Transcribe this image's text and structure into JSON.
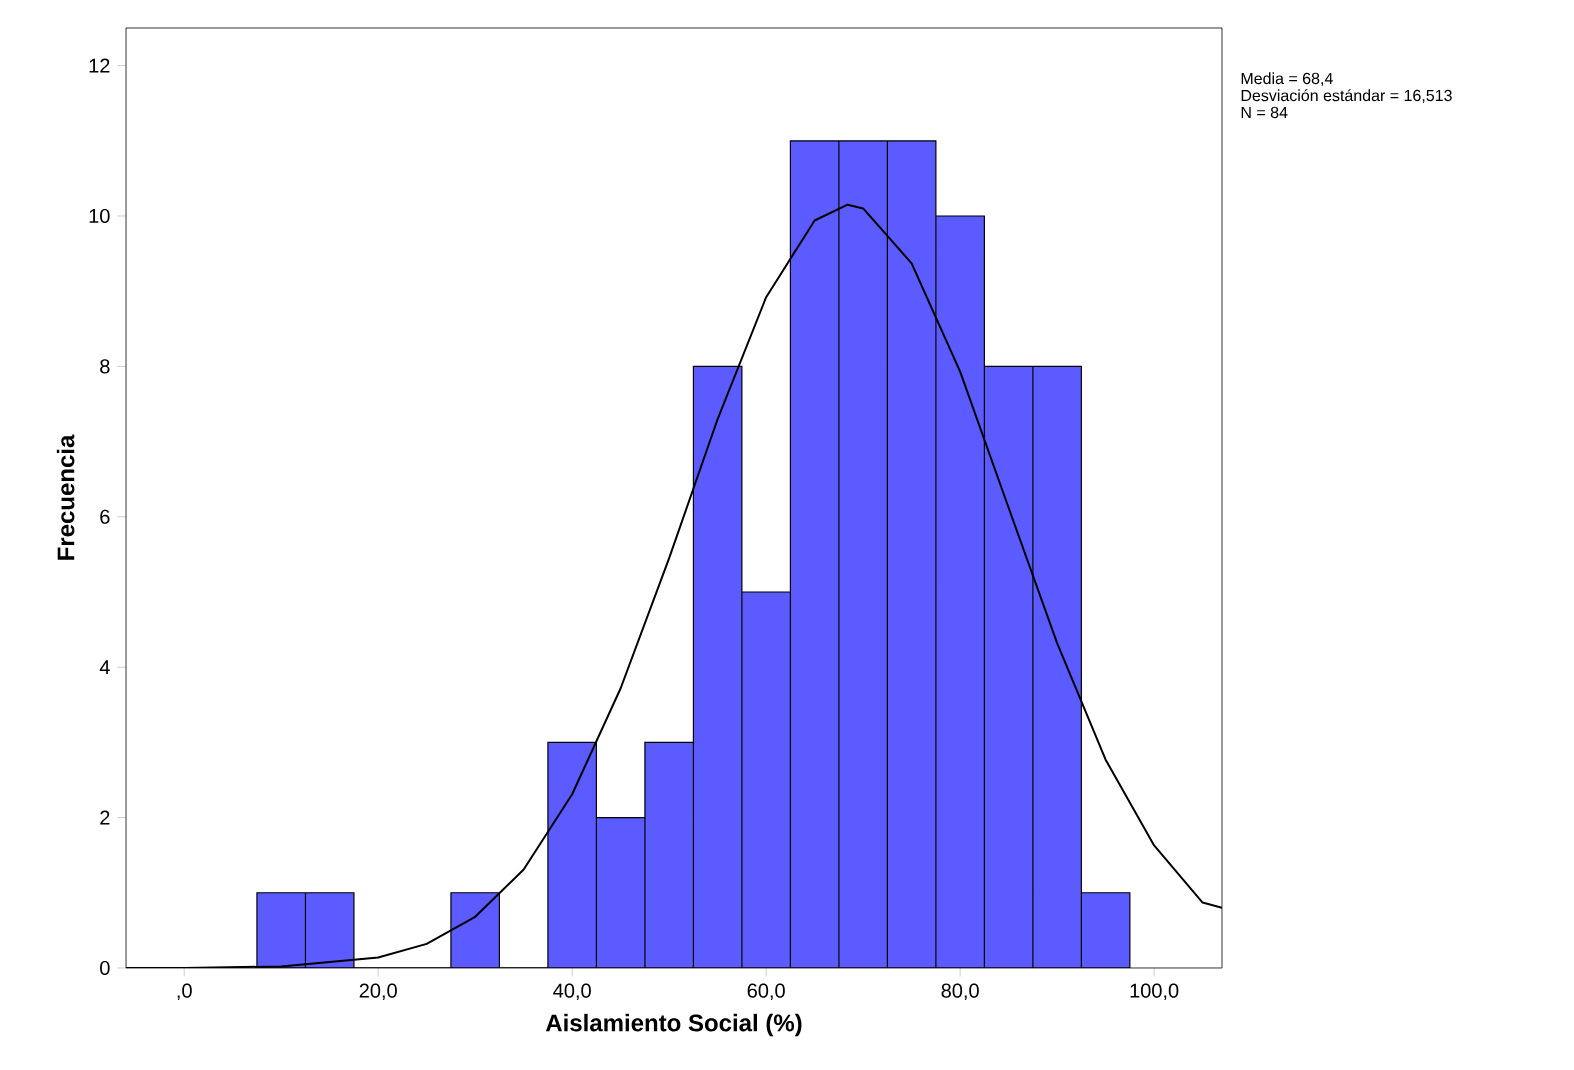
{
  "chart_data": {
    "type": "histogram",
    "xlabel": "Aislamiento Social (%)",
    "ylabel": "Frecuencia",
    "annotations": [
      "Media = 68,4",
      "Desviación estándar = 16,513",
      "N = 84"
    ],
    "xlim": [
      -6,
      107
    ],
    "ylim": [
      0,
      12.5
    ],
    "xticks": [
      {
        "value": 0,
        "label": ",0"
      },
      {
        "value": 20,
        "label": "20,0"
      },
      {
        "value": 40,
        "label": "40,0"
      },
      {
        "value": 60,
        "label": "60,0"
      },
      {
        "value": 80,
        "label": "80,0"
      },
      {
        "value": 100,
        "label": "100,0"
      }
    ],
    "yticks": [
      0,
      2,
      4,
      6,
      8,
      10,
      12
    ],
    "series": [
      {
        "color": "#5b5bff",
        "bins": [
          7.5,
          12.5,
          17.5,
          22.5,
          27.5,
          32.5,
          37.5,
          42.5,
          47.5,
          52.5,
          57.5,
          62.5,
          67.5,
          72.5,
          77.5,
          82.5,
          87.5,
          92.5,
          97.5
        ],
        "values": [
          1,
          1,
          0,
          0,
          1,
          0,
          3,
          2,
          3,
          8,
          5,
          11,
          11,
          11,
          10,
          8,
          8,
          1
        ]
      },
      {
        "type": "line",
        "color": "#000000",
        "x": [
          -6,
          0,
          10,
          20,
          25,
          30,
          35,
          40,
          45,
          50,
          55,
          60,
          65,
          68.4,
          70,
          75,
          80,
          85,
          90,
          95,
          100,
          105,
          107
        ],
        "values": [
          0,
          0,
          0.02,
          0.14,
          0.32,
          0.68,
          1.31,
          2.31,
          3.72,
          5.45,
          7.3,
          8.92,
          9.94,
          10.15,
          10.1,
          9.37,
          7.93,
          6.12,
          4.32,
          2.77,
          1.63,
          0.87,
          0.8
        ]
      }
    ]
  }
}
